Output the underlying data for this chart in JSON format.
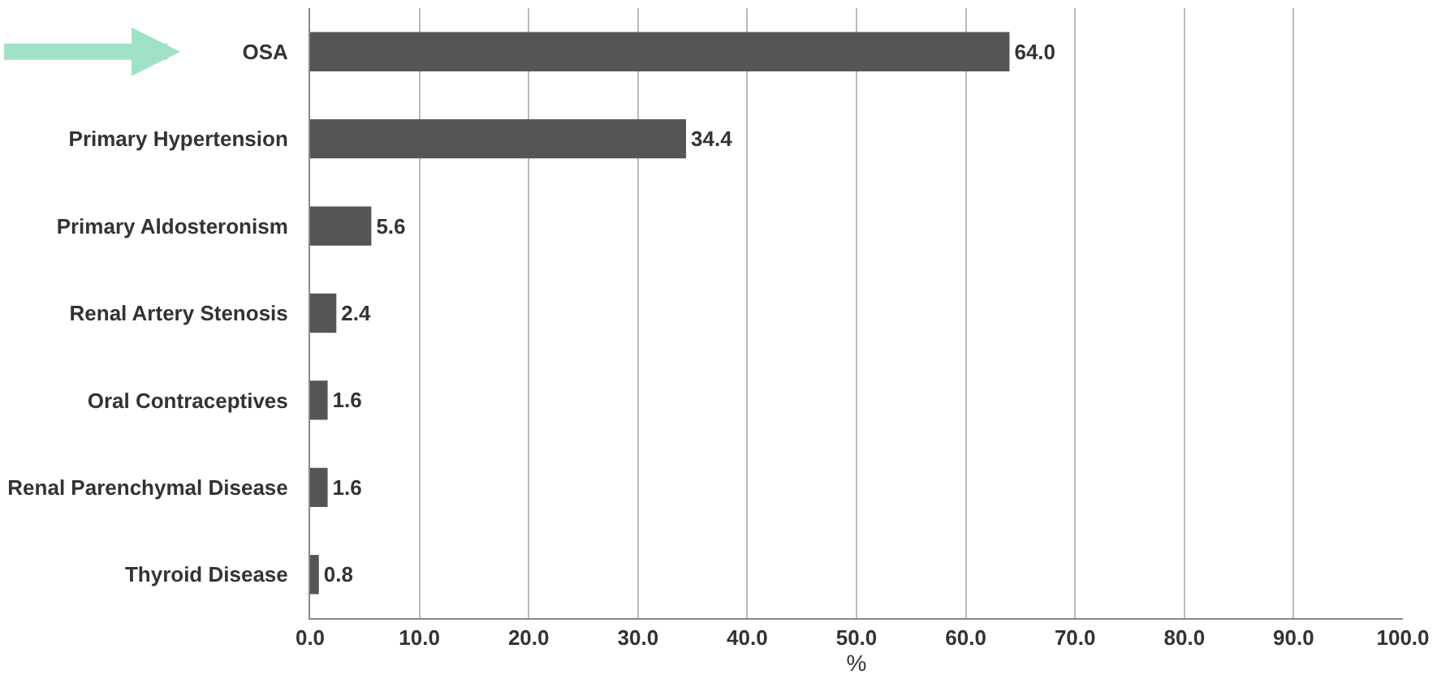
{
  "chart_data": {
    "type": "bar",
    "orientation": "horizontal",
    "xlabel": "%",
    "categories": [
      "OSA",
      "Primary Hypertension",
      "Primary Aldosteronism",
      "Renal Artery Stenosis",
      "Oral Contraceptives",
      "Renal Parenchymal Disease",
      "Thyroid Disease"
    ],
    "values": [
      64.0,
      34.4,
      5.6,
      2.4,
      1.6,
      1.6,
      0.8
    ],
    "value_labels": [
      "64.0",
      "34.4",
      "5.6",
      "2.4",
      "1.6",
      "1.6",
      "0.8"
    ],
    "color": "#555555",
    "xlim": [
      0,
      100
    ],
    "xticks": [
      {
        "value": 0,
        "label": "0.0"
      },
      {
        "value": 10,
        "label": "10.0"
      },
      {
        "value": 20,
        "label": "20.0"
      },
      {
        "value": 30,
        "label": "30.0"
      },
      {
        "value": 40,
        "label": "40.0"
      },
      {
        "value": 50,
        "label": "50.0"
      },
      {
        "value": 60,
        "label": "60.0"
      },
      {
        "value": 70,
        "label": "70.0"
      },
      {
        "value": 80,
        "label": "80.0"
      },
      {
        "value": 90,
        "label": "90.0"
      },
      {
        "value": 100,
        "label": "100.0"
      }
    ],
    "grid": "x"
  }
}
